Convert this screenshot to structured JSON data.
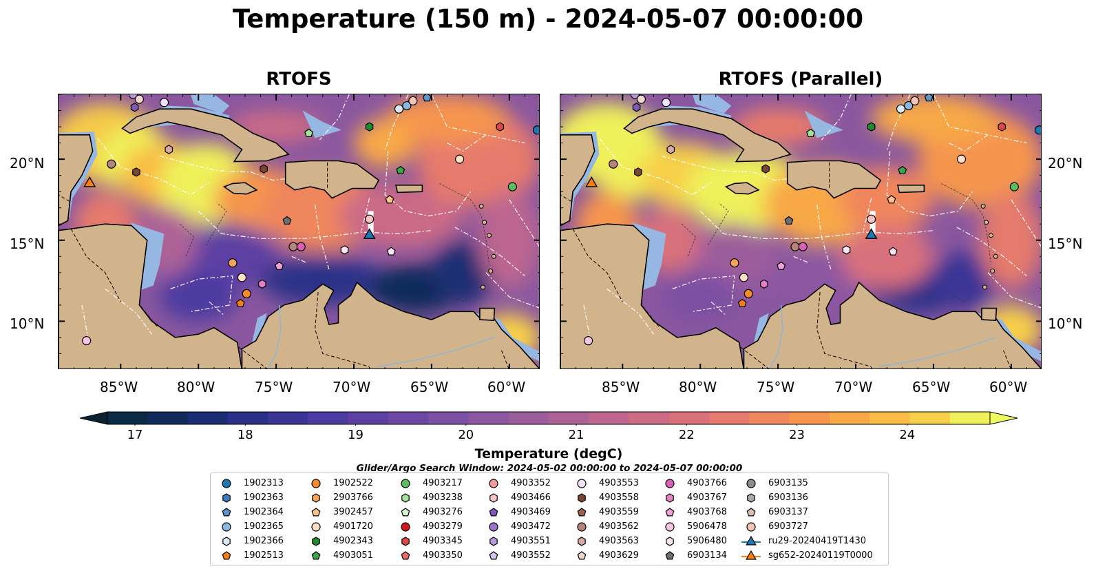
{
  "title": "Temperature (150 m) - 2024-05-07 00:00:00",
  "panels": [
    {
      "title": "RTOFS"
    },
    {
      "title": "RTOFS (Parallel)"
    }
  ],
  "axes": {
    "lon_ticks": [
      "85°W",
      "80°W",
      "75°W",
      "70°W",
      "65°W",
      "60°W"
    ],
    "lat_ticks": [
      "20°N",
      "15°N",
      "10°N"
    ]
  },
  "colorbar": {
    "label": "Temperature (degC)",
    "ticks": [
      "17",
      "18",
      "19",
      "20",
      "21",
      "22",
      "23",
      "24"
    ],
    "range": [
      16.75,
      24.75
    ],
    "colors": [
      "#0b2b45",
      "#102a5a",
      "#1a2d72",
      "#2a3088",
      "#3a3495",
      "#4b3aa0",
      "#5c40a3",
      "#6c48a4",
      "#7c50a2",
      "#8c57a0",
      "#9c5d9c",
      "#ad6296",
      "#bc6690",
      "#cb6b86",
      "#d9717b",
      "#e67a6c",
      "#f0865b",
      "#f5954e",
      "#f8a846",
      "#f9bb45",
      "#f7cf4a",
      "#eff05a"
    ],
    "over_color": "#eefc62",
    "under_color": "#0b2233"
  },
  "search_window": "Glider/Argo Search Window: 2024-05-02 00:00:00 to 2024-05-07 00:00:00",
  "legend": {
    "columns": [
      [
        {
          "label": "1902313",
          "color": "#1f77b4",
          "marker": "circle"
        },
        {
          "label": "1902363",
          "color": "#3a7cbf",
          "marker": "hexagon"
        },
        {
          "label": "1902364",
          "color": "#5d97c9",
          "marker": "pentagon"
        },
        {
          "label": "1902365",
          "color": "#8ab6e0",
          "marker": "circle"
        },
        {
          "label": "1902366",
          "color": "#dbe8f6",
          "marker": "hexagon"
        },
        {
          "label": "1902513",
          "color": "#f57f17",
          "marker": "pentagon"
        }
      ],
      [
        {
          "label": "1902522",
          "color": "#f58a2a",
          "marker": "circle"
        },
        {
          "label": "2903766",
          "color": "#f7a35b",
          "marker": "hexagon"
        },
        {
          "label": "3902457",
          "color": "#fbc28c",
          "marker": "pentagon"
        },
        {
          "label": "4901720",
          "color": "#fde0c5",
          "marker": "circle"
        },
        {
          "label": "4902343",
          "color": "#1e8a2e",
          "marker": "hexagon"
        },
        {
          "label": "4903051",
          "color": "#3aa64a",
          "marker": "pentagon"
        }
      ],
      [
        {
          "label": "4903217",
          "color": "#5cbf5c",
          "marker": "circle"
        },
        {
          "label": "4903238",
          "color": "#a2e29a",
          "marker": "hexagon"
        },
        {
          "label": "4903276",
          "color": "#d4f5c8",
          "marker": "pentagon"
        },
        {
          "label": "4903279",
          "color": "#d0181c",
          "marker": "circle"
        },
        {
          "label": "4903345",
          "color": "#dc4747",
          "marker": "hexagon"
        },
        {
          "label": "4903350",
          "color": "#ec6a6a",
          "marker": "pentagon"
        }
      ],
      [
        {
          "label": "4903352",
          "color": "#f59a9a",
          "marker": "circle"
        },
        {
          "label": "4903466",
          "color": "#f9c4c4",
          "marker": "hexagon"
        },
        {
          "label": "4903469",
          "color": "#7f58b8",
          "marker": "pentagon"
        },
        {
          "label": "4903472",
          "color": "#9a74c8",
          "marker": "circle"
        },
        {
          "label": "4903551",
          "color": "#b899dc",
          "marker": "hexagon"
        },
        {
          "label": "4903552",
          "color": "#d6c2ee",
          "marker": "pentagon"
        }
      ],
      [
        {
          "label": "4903553",
          "color": "#efe3fb",
          "marker": "circle"
        },
        {
          "label": "4903558",
          "color": "#7a4830",
          "marker": "hexagon"
        },
        {
          "label": "4903559",
          "color": "#9a6450",
          "marker": "pentagon"
        },
        {
          "label": "4903562",
          "color": "#b8847a",
          "marker": "circle"
        },
        {
          "label": "4903563",
          "color": "#d6aaa3",
          "marker": "hexagon"
        },
        {
          "label": "4903629",
          "color": "#f1d5cf",
          "marker": "pentagon"
        }
      ],
      [
        {
          "label": "4903766",
          "color": "#d95fb8",
          "marker": "circle"
        },
        {
          "label": "4903767",
          "color": "#e380c7",
          "marker": "hexagon"
        },
        {
          "label": "4903768",
          "color": "#eda3d8",
          "marker": "pentagon"
        },
        {
          "label": "5906478",
          "color": "#f6c6e8",
          "marker": "circle"
        },
        {
          "label": "5906480",
          "color": "#fbe4f4",
          "marker": "hexagon"
        },
        {
          "label": "6903134",
          "color": "#6e6e6e",
          "marker": "pentagon"
        }
      ],
      [
        {
          "label": "6903135",
          "color": "#8c8c8c",
          "marker": "circle"
        },
        {
          "label": "6903136",
          "color": "#aaaaaa",
          "marker": "hexagon"
        },
        {
          "label": "6903137",
          "color": "#ddc0b5",
          "marker": "pentagon"
        },
        {
          "label": "6903727",
          "color": "#f6c4b6",
          "marker": "circle"
        },
        {
          "label": "ru29-20240419T1430",
          "color": "#1f77b4",
          "marker": "triangle-line"
        },
        {
          "label": "sg652-20240119T0000",
          "color": "#ff7f0e",
          "marker": "triangle-line"
        }
      ]
    ]
  },
  "map_extent": {
    "lon": [
      -89,
      -58
    ],
    "lat": [
      7,
      24
    ]
  },
  "gliders": [
    {
      "name": "ru29-20240419T1430",
      "lon": -69.0,
      "lat": 15.3,
      "color": "#1f77b4"
    },
    {
      "name": "sg652-20240119T0000",
      "lon": -87.0,
      "lat": 18.5,
      "color": "#ff7f0e"
    }
  ],
  "argo_floats": [
    {
      "lon": -84.2,
      "lat": 24.0,
      "color": "#b899dc",
      "marker": "circle"
    },
    {
      "lon": -83.8,
      "lat": 23.7,
      "color": "#f1d5cf",
      "marker": "circle"
    },
    {
      "lon": -84.1,
      "lat": 23.2,
      "color": "#7f58b8",
      "marker": "hexagon"
    },
    {
      "lon": -82.2,
      "lat": 23.5,
      "color": "#efe3fb",
      "marker": "circle"
    },
    {
      "lon": -85.6,
      "lat": 19.7,
      "color": "#b8847a",
      "marker": "circle"
    },
    {
      "lon": -84.0,
      "lat": 19.2,
      "color": "#7a4830",
      "marker": "hexagon"
    },
    {
      "lon": -81.9,
      "lat": 20.6,
      "color": "#d6aaa3",
      "marker": "hexagon"
    },
    {
      "lon": -72.9,
      "lat": 21.6,
      "color": "#a2e29a",
      "marker": "pentagon"
    },
    {
      "lon": -69.0,
      "lat": 22.0,
      "color": "#1e8a2e",
      "marker": "hexagon"
    },
    {
      "lon": -67.1,
      "lat": 23.1,
      "color": "#dbe8f6",
      "marker": "circle"
    },
    {
      "lon": -66.6,
      "lat": 23.3,
      "color": "#8ab6e0",
      "marker": "circle"
    },
    {
      "lon": -66.2,
      "lat": 23.6,
      "color": "#f6c4b6",
      "marker": "circle"
    },
    {
      "lon": -65.3,
      "lat": 23.8,
      "color": "#5d97c9",
      "marker": "pentagon"
    },
    {
      "lon": -60.6,
      "lat": 22.0,
      "color": "#dc4747",
      "marker": "hexagon"
    },
    {
      "lon": -58.2,
      "lat": 21.8,
      "color": "#1f77b4",
      "marker": "circle"
    },
    {
      "lon": -63.2,
      "lat": 20.0,
      "color": "#fde0c5",
      "marker": "circle"
    },
    {
      "lon": -67.0,
      "lat": 19.3,
      "color": "#3aa64a",
      "marker": "pentagon"
    },
    {
      "lon": -59.8,
      "lat": 18.3,
      "color": "#5cbf5c",
      "marker": "circle"
    },
    {
      "lon": -75.8,
      "lat": 19.4,
      "color": "#7a4830",
      "marker": "hexagon"
    },
    {
      "lon": -67.7,
      "lat": 17.5,
      "color": "#fbc28c",
      "marker": "pentagon"
    },
    {
      "lon": -74.3,
      "lat": 16.2,
      "color": "#6e6e6e",
      "marker": "pentagon"
    },
    {
      "lon": -69.0,
      "lat": 16.3,
      "color": "#f9c4c4",
      "marker": "circle"
    },
    {
      "lon": -73.9,
      "lat": 14.6,
      "color": "#b8847a",
      "marker": "circle"
    },
    {
      "lon": -73.4,
      "lat": 14.6,
      "color": "#d95fb8",
      "marker": "circle"
    },
    {
      "lon": -70.6,
      "lat": 14.4,
      "color": "#fbe4f4",
      "marker": "hexagon"
    },
    {
      "lon": -67.6,
      "lat": 14.3,
      "color": "#fbe4f4",
      "marker": "pentagon"
    },
    {
      "lon": -74.8,
      "lat": 13.4,
      "color": "#eda3d8",
      "marker": "pentagon"
    },
    {
      "lon": -77.8,
      "lat": 13.6,
      "color": "#f7a35b",
      "marker": "circle"
    },
    {
      "lon": -77.2,
      "lat": 12.7,
      "color": "#fde0c5",
      "marker": "circle"
    },
    {
      "lon": -75.9,
      "lat": 12.3,
      "color": "#e380c7",
      "marker": "hexagon"
    },
    {
      "lon": -76.9,
      "lat": 11.7,
      "color": "#f58a2a",
      "marker": "circle"
    },
    {
      "lon": -77.3,
      "lat": 11.1,
      "color": "#f57f17",
      "marker": "pentagon"
    },
    {
      "lon": -87.2,
      "lat": 8.8,
      "color": "#f6c6e8",
      "marker": "circle"
    }
  ]
}
